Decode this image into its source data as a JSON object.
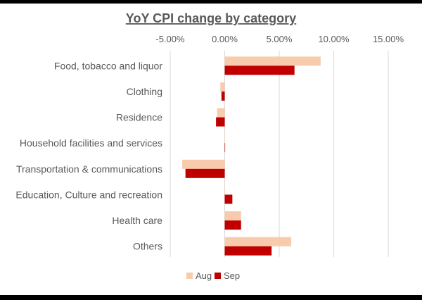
{
  "chart_data": {
    "type": "bar",
    "orientation": "horizontal",
    "title": "YoY CPI change by category",
    "xlabel": "",
    "ylabel": "",
    "xlim": [
      -5,
      15
    ],
    "x_ticks": [
      -5,
      0,
      5,
      10,
      15
    ],
    "x_tick_labels": [
      "-5.00%",
      "0.00%",
      "5.00%",
      "10.00%",
      "15.00%"
    ],
    "x_axis_position": "top",
    "grid": "vertical",
    "legend_position": "bottom",
    "categories": [
      "Food, tobacco and liquor",
      "Clothing",
      "Residence",
      "Household facilities and services",
      "Transportation & communications",
      "Education, Culture and recreation",
      "Health care",
      "Others"
    ],
    "series": [
      {
        "name": "Aug",
        "color": "#F8CBAD",
        "values": [
          8.8,
          -0.4,
          -0.7,
          0.0,
          -3.9,
          0.0,
          1.5,
          6.1
        ]
      },
      {
        "name": "Sep",
        "color": "#C00000",
        "values": [
          6.4,
          -0.3,
          -0.8,
          0.0,
          -3.6,
          0.7,
          1.5,
          4.3
        ]
      }
    ]
  }
}
